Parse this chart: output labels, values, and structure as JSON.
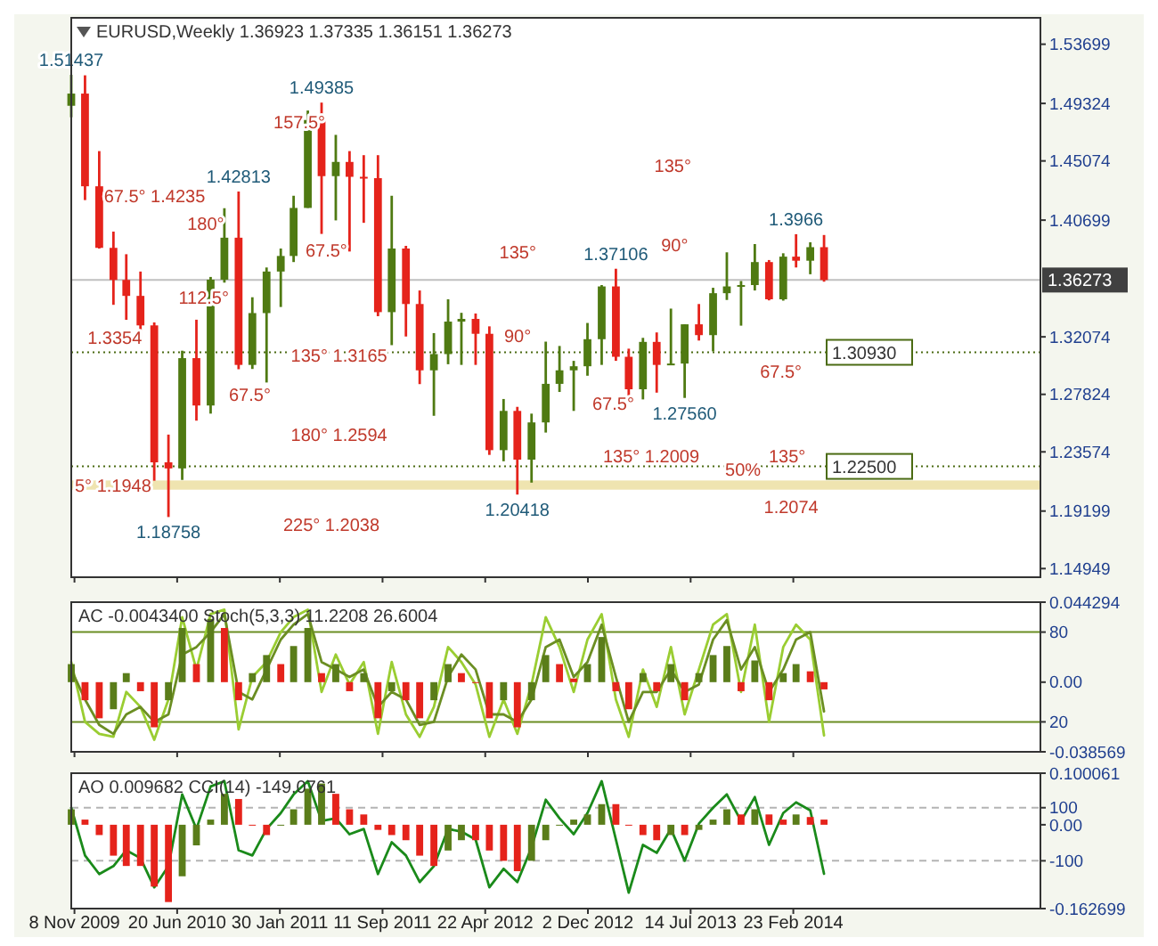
{
  "chart_data": [
    {
      "type": "candlestick",
      "title": "EURUSD,Weekly 1.36923 1.37335 1.36151 1.36273",
      "tick_labels": "y",
      "x": [
        "2009-11",
        "2009-12",
        "2010-01",
        "2010-02",
        "2010-03",
        "2010-04",
        "2010-05",
        "2010-06",
        "2010-07",
        "2010-08",
        "2010-09",
        "2010-10",
        "2010-11",
        "2010-12",
        "2011-01",
        "2011-02",
        "2011-03",
        "2011-04",
        "2011-05",
        "2011-06",
        "2011-07",
        "2011-08",
        "2011-09",
        "2011-10",
        "2011-11",
        "2011-12",
        "2012-01",
        "2012-02",
        "2012-03",
        "2012-04",
        "2012-05",
        "2012-06",
        "2012-07",
        "2012-08",
        "2012-09",
        "2012-10",
        "2012-11",
        "2012-12",
        "2013-01",
        "2013-02",
        "2013-03",
        "2013-04",
        "2013-05",
        "2013-06",
        "2013-07",
        "2013-08",
        "2013-09",
        "2013-10",
        "2013-11",
        "2013-12",
        "2014-01",
        "2014-02",
        "2014-03",
        "2014-04",
        "2014-05"
      ],
      "ohlc": [
        [
          1.4915,
          1.51437,
          1.483,
          1.5005
        ],
        [
          1.5005,
          1.514,
          1.4218,
          1.432
        ],
        [
          1.432,
          1.458,
          1.386,
          1.3865
        ],
        [
          1.3865,
          1.3985,
          1.3444,
          1.3628
        ],
        [
          1.3628,
          1.3818,
          1.3333,
          1.351
        ],
        [
          1.351,
          1.369,
          1.3157,
          1.3292
        ],
        [
          1.3292,
          1.3314,
          1.2144,
          1.228
        ],
        [
          1.228,
          1.2485,
          1.18758,
          1.2235
        ],
        [
          1.2235,
          1.3105,
          1.215,
          1.305
        ],
        [
          1.305,
          1.3334,
          1.2588,
          1.27
        ],
        [
          1.27,
          1.365,
          1.264,
          1.363
        ],
        [
          1.363,
          1.4158,
          1.3608,
          1.394
        ],
        [
          1.394,
          1.42813,
          1.2968,
          1.3
        ],
        [
          1.3,
          1.35,
          1.297,
          1.3383
        ],
        [
          1.3383,
          1.372,
          1.287,
          1.369
        ],
        [
          1.369,
          1.386,
          1.3428,
          1.3805
        ],
        [
          1.3805,
          1.425,
          1.376,
          1.416
        ],
        [
          1.416,
          1.488,
          1.416,
          1.481
        ],
        [
          1.481,
          1.49385,
          1.3968,
          1.4395
        ],
        [
          1.4395,
          1.47,
          1.4068,
          1.45
        ],
        [
          1.45,
          1.458,
          1.3838,
          1.439
        ],
        [
          1.439,
          1.455,
          1.405,
          1.438
        ],
        [
          1.438,
          1.455,
          1.336,
          1.339
        ],
        [
          1.339,
          1.425,
          1.3146,
          1.386
        ],
        [
          1.386,
          1.388,
          1.321,
          1.345
        ],
        [
          1.345,
          1.355,
          1.2858,
          1.296
        ],
        [
          1.296,
          1.3235,
          1.2624,
          1.308
        ],
        [
          1.308,
          1.3485,
          1.3005,
          1.332
        ],
        [
          1.332,
          1.3385,
          1.3,
          1.334
        ],
        [
          1.334,
          1.338,
          1.3,
          1.323
        ],
        [
          1.323,
          1.3285,
          1.2335,
          1.237
        ],
        [
          1.237,
          1.2748,
          1.2288,
          1.266
        ],
        [
          1.266,
          1.269,
          1.20418,
          1.23
        ],
        [
          1.23,
          1.264,
          1.213,
          1.2575
        ],
        [
          1.2575,
          1.3172,
          1.25,
          1.286
        ],
        [
          1.286,
          1.314,
          1.28,
          1.296
        ],
        [
          1.296,
          1.303,
          1.266,
          1.299
        ],
        [
          1.299,
          1.331,
          1.292,
          1.319
        ],
        [
          1.319,
          1.359,
          1.3,
          1.358
        ],
        [
          1.358,
          1.37106,
          1.303,
          1.306
        ],
        [
          1.306,
          1.312,
          1.275,
          1.282
        ],
        [
          1.282,
          1.32,
          1.2745,
          1.317
        ],
        [
          1.317,
          1.324,
          1.2795,
          1.3
        ],
        [
          1.3,
          1.3416,
          1.3,
          1.301
        ],
        [
          1.301,
          1.33,
          1.2756,
          1.33
        ],
        [
          1.33,
          1.345,
          1.318,
          1.322
        ],
        [
          1.322,
          1.357,
          1.31,
          1.353
        ],
        [
          1.353,
          1.3832,
          1.348,
          1.358
        ],
        [
          1.358,
          1.362,
          1.329,
          1.359
        ],
        [
          1.359,
          1.3893,
          1.355,
          1.376
        ],
        [
          1.376,
          1.3775,
          1.3477,
          1.3485
        ],
        [
          1.3485,
          1.3825,
          1.3475,
          1.38
        ],
        [
          1.38,
          1.3966,
          1.372,
          1.377
        ],
        [
          1.377,
          1.3906,
          1.367,
          1.387
        ],
        [
          1.387,
          1.396,
          1.3615,
          1.36273
        ]
      ],
      "xlim": [
        "2009-11-01",
        "2015-08-16"
      ],
      "xticks": [
        {
          "value": "2009-11-08",
          "label": null
        },
        {
          "value": "2010-06-20",
          "label": null
        },
        {
          "value": "2011-01-30",
          "label": null
        },
        {
          "value": "2011-09-11",
          "label": null
        },
        {
          "value": "2012-04-22",
          "label": null
        },
        {
          "value": "2012-12-02",
          "label": null
        },
        {
          "value": "2013-07-14",
          "label": null
        },
        {
          "value": "2014-02-23",
          "label": null
        }
      ],
      "ylim": [
        1.1431,
        1.5565
      ],
      "yticks": [
        1.53699,
        1.49324,
        1.45074,
        1.40699,
        1.32074,
        1.27824,
        1.23574,
        1.19199,
        1.14949
      ],
      "ref_lines": [
        {
          "axis": "y",
          "value": 1.36273,
          "label": "1.36273",
          "color": "#c0c0c0"
        },
        {
          "axis": "y",
          "value": 1.3093,
          "label": "1.30930",
          "color": "#4b6b13",
          "line_style": "dotted"
        },
        {
          "axis": "y",
          "value": 1.225,
          "label": "1.22500",
          "color": "#4b6b13",
          "line_style": "dotted"
        }
      ],
      "bands": [
        {
          "axis": "y",
          "from": 1.2078,
          "to": 1.2146,
          "color": "#efe4b0"
        }
      ],
      "annotations": [
        {
          "text": "1.51437",
          "x": "2009-11",
          "y": 1.51437
        },
        {
          "text": "1.49385",
          "x": "2011-05",
          "y": 1.49385
        },
        {
          "text": "1.42813",
          "x": "2010-11",
          "y": 1.42813
        },
        {
          "text": "1.18758",
          "x": "2010-06",
          "y": 1.18758
        },
        {
          "text": "1.20418",
          "x": "2012-07",
          "y": 1.20418
        },
        {
          "text": "1.37106",
          "x": "2013-02",
          "y": 1.37106
        },
        {
          "text": "1.27560",
          "x": "2013-07",
          "y": 1.2756
        },
        {
          "text": "1.3966",
          "x": "2014-03",
          "y": 1.3966
        },
        "157.5°",
        "67.5° 1.4235",
        "180°",
        "67.5°",
        "112.5°",
        "1.3354",
        "67.5°",
        "135° 1.3165",
        "180° 1.2594",
        "225° 1.2038",
        "5° 1.1948",
        "135°",
        "90°",
        "135° 1.2009",
        "67.5°",
        "135°",
        "90°",
        "67.5°",
        "50%",
        "135°",
        "1.2074"
      ]
    },
    {
      "type": "bar",
      "title": "AC -0.0043400  Stoch(5,3,3) 11.2208 26.6004",
      "tick_labels": "y",
      "x": [
        "2009-11",
        "2009-12",
        "2010-01",
        "2010-02",
        "2010-03",
        "2010-04",
        "2010-05",
        "2010-06",
        "2010-07",
        "2010-08",
        "2010-09",
        "2010-10",
        "2010-11",
        "2010-12",
        "2011-01",
        "2011-02",
        "2011-03",
        "2011-04",
        "2011-05",
        "2011-06",
        "2011-07",
        "2011-08",
        "2011-09",
        "2011-10",
        "2011-11",
        "2011-12",
        "2012-01",
        "2012-02",
        "2012-03",
        "2012-04",
        "2012-05",
        "2012-06",
        "2012-07",
        "2012-08",
        "2012-09",
        "2012-10",
        "2012-11",
        "2012-12",
        "2013-01",
        "2013-02",
        "2013-03",
        "2013-04",
        "2013-05",
        "2013-06",
        "2013-07",
        "2013-08",
        "2013-09",
        "2013-10",
        "2013-11",
        "2013-12",
        "2014-01",
        "2014-02",
        "2014-03",
        "2014-04",
        "2014-05"
      ],
      "xlim": [
        "2009-11-01",
        "2015-08-16"
      ],
      "xticks": [
        {
          "value": "2009-11-08",
          "label": null
        },
        {
          "value": "2010-06-20",
          "label": null
        },
        {
          "value": "2011-01-30",
          "label": null
        },
        {
          "value": "2011-09-11",
          "label": null
        },
        {
          "value": "2012-04-22",
          "label": null
        },
        {
          "value": "2012-12-02",
          "label": null
        },
        {
          "value": "2013-07-14",
          "label": null
        },
        {
          "value": "2014-02-23",
          "label": null
        }
      ],
      "ylim": [
        -0.038569,
        0.044294
      ],
      "yticks": [
        -0.038569,
        {
          "value": 0,
          "label": "0.00"
        },
        0.044294
      ],
      "y2lim": [
        0,
        100
      ],
      "y2ticks": [
        20,
        80
      ],
      "ref_lines": [
        {
          "axis": "y2",
          "value": 80,
          "color": "#6b8e23"
        },
        {
          "axis": "y2",
          "value": 20,
          "color": "#6b8e23"
        }
      ],
      "series": [
        {
          "type": "bar",
          "values": [
            0.01,
            -0.01,
            -0.02,
            -0.015,
            0.005,
            -0.005,
            -0.025,
            -0.01,
            0.03,
            0.01,
            0.035,
            0.03,
            -0.01,
            0.005,
            0.015,
            0.01,
            0.02,
            0.03,
            0.005,
            0.01,
            -0.005,
            0.005,
            -0.02,
            -0.005,
            -0.01,
            -0.02,
            -0.01,
            0.01,
            0.005,
            0,
            -0.02,
            -0.01,
            -0.025,
            -0.01,
            0.015,
            0.01,
            0.002,
            0.01,
            0.025,
            -0.005,
            -0.015,
            0.005,
            -0.005,
            0.01,
            -0.01,
            0.005,
            0.015,
            0.02,
            -0.005,
            0.012,
            -0.01,
            0.005,
            0.01,
            0.006,
            -0.004
          ],
          "colors": [
            "#5a7d1a",
            "#e5231b",
            "#e5231b",
            "#5a7d1a",
            "#5a7d1a",
            "#e5231b",
            "#e5231b",
            "#5a7d1a",
            "#5a7d1a",
            "#e5231b",
            "#5a7d1a",
            "#e5231b",
            "#e5231b",
            "#5a7d1a",
            "#5a7d1a",
            "#e5231b",
            "#5a7d1a",
            "#5a7d1a",
            "#e5231b",
            "#5a7d1a",
            "#e5231b",
            "#5a7d1a",
            "#e5231b",
            "#5a7d1a",
            "#e5231b",
            "#e5231b",
            "#5a7d1a",
            "#5a7d1a",
            "#e5231b",
            "#e5231b",
            "#e5231b",
            "#5a7d1a",
            "#e5231b",
            "#5a7d1a",
            "#5a7d1a",
            "#e5231b",
            "#e5231b",
            "#5a7d1a",
            "#5a7d1a",
            "#e5231b",
            "#e5231b",
            "#5a7d1a",
            "#e5231b",
            "#5a7d1a",
            "#e5231b",
            "#5a7d1a",
            "#5a7d1a",
            "#5a7d1a",
            "#e5231b",
            "#5a7d1a",
            "#e5231b",
            "#5a7d1a",
            "#5a7d1a",
            "#e5231b",
            "#e5231b"
          ]
        },
        {
          "type": "line",
          "axis": "y2",
          "color": "#9acd32",
          "values": [
            60,
            20,
            12,
            10,
            40,
            30,
            8,
            35,
            90,
            55,
            92,
            95,
            15,
            50,
            60,
            80,
            90,
            95,
            40,
            65,
            45,
            60,
            12,
            60,
            25,
            10,
            30,
            70,
            60,
            45,
            10,
            35,
            12,
            45,
            90,
            70,
            40,
            75,
            92,
            35,
            10,
            55,
            30,
            70,
            25,
            55,
            85,
            92,
            40,
            85,
            20,
            70,
            85,
            75,
            11
          ]
        },
        {
          "type": "line",
          "axis": "y2",
          "color": "#6b8e23",
          "values": [
            55,
            35,
            18,
            12,
            25,
            30,
            20,
            25,
            65,
            70,
            80,
            92,
            40,
            35,
            55,
            75,
            85,
            92,
            60,
            55,
            50,
            55,
            30,
            40,
            35,
            18,
            20,
            50,
            65,
            55,
            25,
            25,
            20,
            35,
            70,
            75,
            50,
            60,
            85,
            50,
            20,
            40,
            40,
            55,
            40,
            45,
            75,
            88,
            55,
            70,
            40,
            55,
            75,
            80,
            27
          ]
        }
      ]
    },
    {
      "type": "bar",
      "title": "AO 0.009682  CCI(14) -149.0761",
      "x": [
        "2009-11",
        "2009-12",
        "2010-01",
        "2010-02",
        "2010-03",
        "2010-04",
        "2010-05",
        "2010-06",
        "2010-07",
        "2010-08",
        "2010-09",
        "2010-10",
        "2010-11",
        "2010-12",
        "2011-01",
        "2011-02",
        "2011-03",
        "2011-04",
        "2011-05",
        "2011-06",
        "2011-07",
        "2011-08",
        "2011-09",
        "2011-10",
        "2011-11",
        "2011-12",
        "2012-01",
        "2012-02",
        "2012-03",
        "2012-04",
        "2012-05",
        "2012-06",
        "2012-07",
        "2012-08",
        "2012-09",
        "2012-10",
        "2012-11",
        "2012-12",
        "2013-01",
        "2013-02",
        "2013-03",
        "2013-04",
        "2013-05",
        "2013-06",
        "2013-07",
        "2013-08",
        "2013-09",
        "2013-10",
        "2013-11",
        "2013-12",
        "2014-01",
        "2014-02",
        "2014-03",
        "2014-04",
        "2014-05"
      ],
      "xlim": [
        "2009-11-01",
        "2015-08-16"
      ],
      "xticks": [
        {
          "value": "2009-11-08",
          "label": "8 Nov 2009"
        },
        {
          "value": "2010-06-20",
          "label": "20 Jun 2010"
        },
        {
          "value": "2011-01-30",
          "label": "30 Jan 2011"
        },
        {
          "value": "2011-09-11",
          "label": "11 Sep 2011"
        },
        {
          "value": "2012-04-22",
          "label": "22 Apr 2012"
        },
        {
          "value": "2012-12-02",
          "label": "2 Dec 2012"
        },
        {
          "value": "2013-07-14",
          "label": "14 Jul 2013"
        },
        {
          "value": "2014-02-23",
          "label": "23 Feb 2014"
        }
      ],
      "ylim": [
        -0.162699,
        0.100061
      ],
      "yticks": [
        -0.162699,
        {
          "value": 0,
          "label": "0.00"
        },
        0.100061
      ],
      "y2lim": [
        -280,
        230
      ],
      "y2ticks": [
        -100,
        100
      ],
      "ref_lines": [
        {
          "axis": "y2",
          "value": 100,
          "color": "#b4b4b4",
          "line_style": "dashed"
        },
        {
          "axis": "y2",
          "value": -100,
          "color": "#b4b4b4",
          "line_style": "dashed"
        }
      ],
      "series": [
        {
          "type": "bar",
          "values": [
            0.03,
            0.01,
            -0.02,
            -0.06,
            -0.08,
            -0.08,
            -0.12,
            -0.15,
            -0.1,
            -0.04,
            0.01,
            0.06,
            0.05,
            0,
            -0.02,
            0,
            0.03,
            0.07,
            0.08,
            0.06,
            0.03,
            0.02,
            -0.01,
            -0.02,
            -0.03,
            -0.06,
            -0.08,
            -0.05,
            -0.03,
            -0.03,
            -0.05,
            -0.07,
            -0.09,
            -0.07,
            -0.03,
            0,
            0.01,
            0.02,
            0.04,
            0.04,
            0,
            -0.02,
            -0.03,
            -0.02,
            -0.02,
            -0.01,
            0.01,
            0.03,
            0.02,
            0.03,
            0.02,
            0.01,
            0.02,
            0.015,
            0.01
          ],
          "colors": [
            "#5a7d1a",
            "#e5231b",
            "#e5231b",
            "#e5231b",
            "#e5231b",
            "#e5231b",
            "#e5231b",
            "#e5231b",
            "#5a7d1a",
            "#5a7d1a",
            "#5a7d1a",
            "#5a7d1a",
            "#e5231b",
            "#e5231b",
            "#e5231b",
            "#5a7d1a",
            "#5a7d1a",
            "#5a7d1a",
            "#5a7d1a",
            "#e5231b",
            "#e5231b",
            "#e5231b",
            "#e5231b",
            "#e5231b",
            "#e5231b",
            "#e5231b",
            "#e5231b",
            "#5a7d1a",
            "#5a7d1a",
            "#e5231b",
            "#e5231b",
            "#e5231b",
            "#e5231b",
            "#5a7d1a",
            "#5a7d1a",
            "#5a7d1a",
            "#5a7d1a",
            "#5a7d1a",
            "#5a7d1a",
            "#e5231b",
            "#e5231b",
            "#e5231b",
            "#e5231b",
            "#5a7d1a",
            "#e5231b",
            "#5a7d1a",
            "#5a7d1a",
            "#5a7d1a",
            "#e5231b",
            "#5a7d1a",
            "#e5231b",
            "#e5231b",
            "#5a7d1a",
            "#e5231b",
            "#e5231b"
          ]
        },
        {
          "type": "line",
          "axis": "y2",
          "color": "#1a8a1a",
          "values": [
            100,
            -80,
            -150,
            -120,
            -60,
            -90,
            -200,
            -120,
            150,
            20,
            180,
            200,
            -60,
            -80,
            20,
            80,
            150,
            200,
            50,
            60,
            0,
            20,
            -150,
            -30,
            -80,
            -180,
            -120,
            20,
            10,
            -20,
            -200,
            -130,
            -180,
            -50,
            130,
            60,
            0,
            80,
            200,
            -20,
            -220,
            -40,
            -70,
            20,
            -100,
            40,
            100,
            150,
            50,
            140,
            -40,
            80,
            120,
            90,
            -149
          ]
        }
      ]
    }
  ]
}
